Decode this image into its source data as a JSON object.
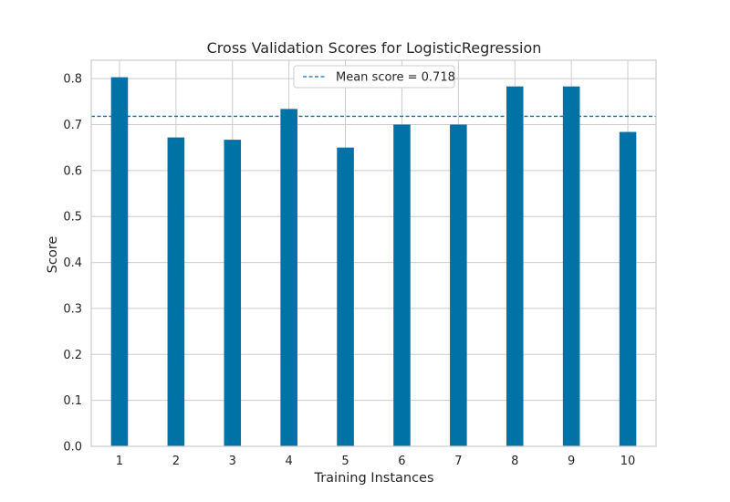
{
  "chart_data": {
    "type": "bar",
    "title": "Cross Validation Scores for LogisticRegression",
    "xlabel": "Training Instances",
    "ylabel": "Score",
    "categories": [
      "1",
      "2",
      "3",
      "4",
      "5",
      "6",
      "7",
      "8",
      "9",
      "10"
    ],
    "values": [
      0.803,
      0.672,
      0.667,
      0.734,
      0.65,
      0.7,
      0.7,
      0.783,
      0.783,
      0.684
    ],
    "ylim": [
      0,
      0.84
    ],
    "yticks": [
      "0.0",
      "0.1",
      "0.2",
      "0.3",
      "0.4",
      "0.5",
      "0.6",
      "0.7",
      "0.8"
    ],
    "mean_score": 0.718,
    "legend": {
      "label": "Mean score = 0.718",
      "placement": "top-center"
    },
    "grid": true,
    "colors": {
      "bar": "#0072a6",
      "mean_line": "#0072a6",
      "grid": "#cccccc",
      "axes_edge": "#cccccc"
    }
  }
}
